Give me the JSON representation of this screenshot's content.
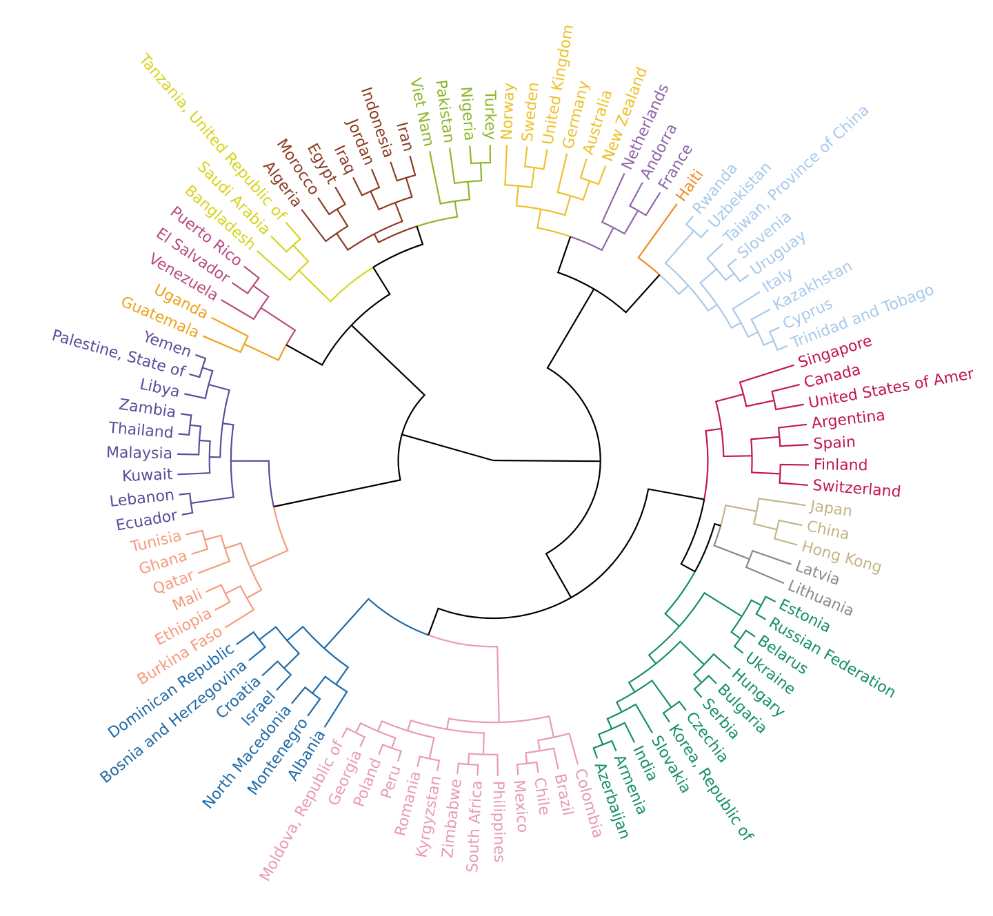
{
  "chart_data": {
    "type": "dendrogram",
    "layout": "radial",
    "link_color_above_clusters": "#000000",
    "tree": {
      "h": 1.0,
      "c": [
        {
          "h": 0.66,
          "c": [
            {
              "h": 0.37,
              "c": [
                {
                  "h": 0.25,
                  "c": [
                    {
                      "h": 0.19,
                      "color": "#ecc12a",
                      "c": [
                        [
                          "Norway",
                          [
                            "Sweden",
                            "United Kingdom"
                          ]
                        ],
                        [
                          "Germany",
                          [
                            "Australia",
                            "New Zealand"
                          ]
                        ]
                      ]
                    },
                    {
                      "h": 0.17,
                      "color": "#8f66a8",
                      "c": [
                        "Netherlands",
                        [
                          "Andorra",
                          "France"
                        ]
                      ]
                    }
                  ]
                },
                {
                  "h": 0.21,
                  "c": [
                    {
                      "leaf": "Haiti",
                      "color": "#f08a1e"
                    },
                    {
                      "h": 0.17,
                      "color": "#a8c9ea",
                      "c": [
                        [
                          "Rwanda",
                          "Uzbekistan"
                        ],
                        [
                          [
                            "Taiwan, Province of China",
                            [
                              "Slovenia",
                              "Uruguay"
                            ]
                          ],
                          [
                            "Italy",
                            [
                              "Kazakhstan",
                              [
                                "Cyprus",
                                "Trinidad and Tobago"
                              ]
                            ]
                          ]
                        ]
                      ]
                    }
                  ]
                }
              ]
            },
            {
              "h": 0.5,
              "c": [
                {
                  "h": 0.32,
                  "c": [
                    {
                      "h": 0.27,
                      "color": "#c4164d",
                      "c": [
                        [
                          "Singapore",
                          [
                            "Canada",
                            "United States of Amer"
                          ]
                        ],
                        [
                          [
                            "Argentina",
                            "Spain"
                          ],
                          [
                            "Finland",
                            "Switzerland"
                          ]
                        ]
                      ]
                    },
                    {
                      "h": 0.27,
                      "c": [
                        {
                          "h": 0.25,
                          "c": [
                            {
                              "h": 0.15,
                              "color": "#c2b585",
                              "c": [
                                "Japan",
                                [
                                  "China",
                                  "Hong Kong"
                                ]
                              ]
                            },
                            {
                              "h": 0.13,
                              "color": "#8a8a8a",
                              "c": [
                                "Latvia",
                                "Lithuania"
                              ]
                            }
                          ]
                        },
                        {
                          "h": 0.21,
                          "color": "#139062",
                          "c": [
                            [
                              [
                                "Estonia",
                                "Russian Federation"
                              ],
                              [
                                "Belarus",
                                "Ukraine"
                              ]
                            ],
                            [
                              [
                                "Hungary",
                                [
                                  "Bulgaria",
                                  "Serbia"
                                ]
                              ],
                              [
                                [
                                  "Czechia",
                                  "Korea, Republic of"
                                ],
                                [
                                  "Slovakia",
                                  [
                                    "India",
                                    [
                                      "Armenia",
                                      "Azerbaijan"
                                    ]
                                  ]
                                ]
                              ]
                            ]
                          ]
                        }
                      ]
                    }
                  ]
                },
                {
                  "h": 0.41,
                  "c": [
                    {
                      "h": 0.17,
                      "color": "#e899b5",
                      "c": [
                        [
                          "Colombia",
                          [
                            "Brazil",
                            [
                              "Chile",
                              "Mexico"
                            ]
                          ]
                        ],
                        [
                          [
                            "Philippines",
                            [
                              "South Africa",
                              "Zimbabwe"
                            ]
                          ],
                          [
                            [
                              "Kyrgyzstan",
                              "Romania"
                            ],
                            [
                              [
                                "Peru",
                                "Poland"
                              ],
                              [
                                "Georgia",
                                "Moldova, Republic of"
                              ]
                            ]
                          ]
                        ]
                      ]
                    },
                    {
                      "h": 0.2,
                      "color": "#1f6aa5",
                      "c": [
                        [
                          "Albania",
                          [
                            "Montenegro",
                            "North Macedonia"
                          ]
                        ],
                        [
                          [
                            "Israel",
                            "Croatia"
                          ],
                          [
                            "Bosnia and Herzegovina",
                            "Dominican Republic"
                          ]
                        ]
                      ]
                    }
                  ]
                }
              ]
            }
          ]
        },
        {
          "h": 0.7,
          "c": [
            {
              "h": 0.29,
              "c": [
                {
                  "h": 0.16,
                  "color": "#f59a7d",
                  "c": [
                    [
                      "Burkina Faso",
                      [
                        "Ethiopia",
                        "Mali"
                      ]
                    ],
                    [
                      "Qatar",
                      [
                        "Ghana",
                        "Tunisia"
                      ]
                    ]
                  ]
                },
                {
                  "h": 0.17,
                  "color": "#5e4a99",
                  "c": [
                    [
                      "Ecuador",
                      "Lebanon"
                    ],
                    [
                      [
                        "Kuwait",
                        [
                          "Malaysia",
                          [
                            "Thailand",
                            "Zambia"
                          ]
                        ]
                      ],
                      [
                        "Libya",
                        [
                          "Palestine, State of",
                          "Yemen"
                        ]
                      ]
                    ]
                  ]
                }
              ]
            },
            {
              "h": 0.38,
              "c": [
                {
                  "h": 0.25,
                  "c": [
                    {
                      "h": 0.13,
                      "color": "#eda21c",
                      "c": [
                        "Guatemala",
                        "Uganda"
                      ]
                    },
                    {
                      "h": 0.12,
                      "color": "#b94b80",
                      "c": [
                        "Venezuela",
                        [
                          "El Salvador",
                          "Puerto Rico"
                        ]
                      ]
                    }
                  ]
                },
                {
                  "h": 0.28,
                  "c": [
                    {
                      "h": 0.14,
                      "color": "#d6d41c",
                      "c": [
                        "Bangladesh",
                        [
                          "Saudi Arabia",
                          "Tanzania, United Republic of"
                        ]
                      ]
                    },
                    {
                      "h": 0.22,
                      "c": [
                        {
                          "h": 0.19,
                          "color": "#8b3a22",
                          "c": [
                            [
                              "Algeria",
                              [
                                "Morocco",
                                "Egypt"
                              ]
                            ],
                            [
                              [
                                "Iraq",
                                "Jordan"
                              ],
                              [
                                "Indonesia",
                                "Iran"
                              ]
                            ]
                          ]
                        },
                        {
                          "h": 0.17,
                          "color": "#8db626",
                          "c": [
                            "Viet Nam",
                            [
                              "Pakistan",
                              [
                                "Nigeria",
                                "Turkey"
                              ]
                            ]
                          ]
                        }
                      ]
                    }
                  ]
                }
              ]
            }
          ]
        }
      ]
    }
  }
}
